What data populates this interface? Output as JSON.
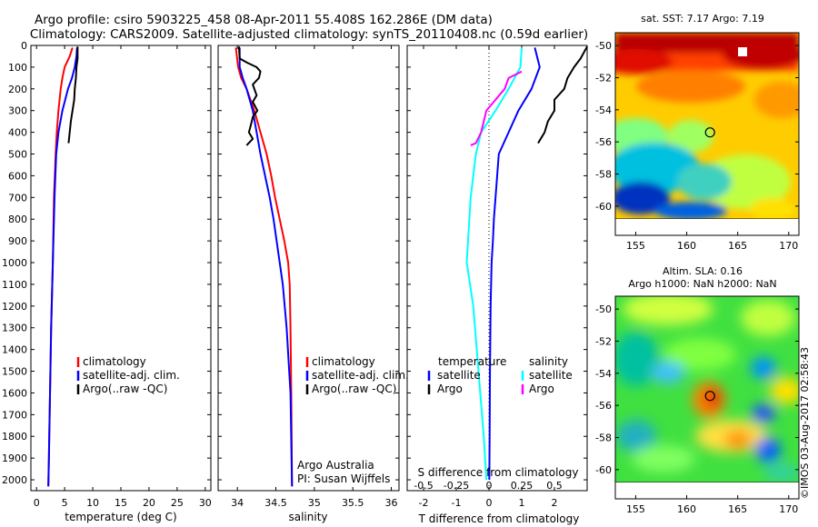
{
  "header": {
    "title_line1": "Argo profile: csiro 5903225_458 08-Apr-2011 55.408S 162.286E (DM data)",
    "title_line2": "Climatology: CARS2009. Satellite-adjusted climatology: synTS_20110408.nc (0.59d earlier)"
  },
  "colors": {
    "climatology": "#ff0000",
    "satellite": "#0000ff",
    "argo": "#000000",
    "salinity_satellite": "#00ffff",
    "salinity_argo": "#ff00ff"
  },
  "depth_axis": {
    "ylim": [
      0,
      2050
    ],
    "ticks": [
      "0",
      "100",
      "200",
      "300",
      "400",
      "500",
      "600",
      "700",
      "800",
      "900",
      "1000",
      "1100",
      "1200",
      "1300",
      "1400",
      "1500",
      "1600",
      "1700",
      "1800",
      "1900",
      "2000"
    ]
  },
  "chart_data": [
    {
      "type": "line",
      "name": "temperature-profile",
      "xlabel": "temperature (deg C)",
      "xlim": [
        -1,
        31
      ],
      "xticks": [
        "0",
        "5",
        "10",
        "15",
        "20",
        "25",
        "30"
      ],
      "legend": [
        "climatology",
        "satellite-adj. clim.",
        "Argo(..raw -QC)"
      ],
      "legend_position": "bottom-center",
      "series": [
        {
          "name": "climatology",
          "depth": [
            10,
            50,
            100,
            150,
            200,
            300,
            400,
            500,
            700,
            1000,
            1300,
            1600,
            1900,
            2030
          ],
          "values": [
            6.4,
            5.9,
            5.0,
            4.6,
            4.3,
            3.9,
            3.6,
            3.4,
            3.1,
            2.9,
            2.6,
            2.4,
            2.2,
            2.1
          ]
        },
        {
          "name": "satellite-adj. clim.",
          "depth": [
            10,
            50,
            100,
            150,
            200,
            300,
            400,
            500,
            700,
            1000,
            1300,
            1600,
            1900,
            2030
          ],
          "values": [
            7.2,
            7.1,
            6.8,
            6.3,
            5.6,
            4.6,
            3.9,
            3.5,
            3.2,
            2.9,
            2.6,
            2.4,
            2.2,
            2.1
          ]
        },
        {
          "name": "Argo(..raw -QC)",
          "depth": [
            5,
            60,
            100,
            150,
            200,
            250,
            300,
            350,
            400,
            450
          ],
          "values": [
            7.3,
            7.3,
            7.1,
            7.0,
            6.8,
            6.7,
            6.4,
            6.1,
            5.9,
            5.7
          ]
        }
      ]
    },
    {
      "type": "line",
      "name": "salinity-profile",
      "xlabel": "salinity",
      "xlim": [
        33.75,
        36.1
      ],
      "xticks": [
        "34",
        "34.5",
        "35",
        "35.5",
        "36"
      ],
      "legend": [
        "climatology",
        "satellite-adj. clim.",
        "Argo(..raw -QC)"
      ],
      "legend_position": "bottom-center",
      "annotation": [
        "Argo Australia",
        "PI: Susan Wijffels"
      ],
      "series": [
        {
          "name": "climatology",
          "depth": [
            10,
            100,
            150,
            200,
            300,
            400,
            500,
            600,
            700,
            800,
            900,
            1000,
            1100,
            1300,
            1600,
            2030
          ],
          "values": [
            33.98,
            34.01,
            34.05,
            34.12,
            34.22,
            34.3,
            34.38,
            34.44,
            34.49,
            34.55,
            34.61,
            34.66,
            34.68,
            34.69,
            34.7,
            34.71
          ]
        },
        {
          "name": "satellite-adj. clim.",
          "depth": [
            10,
            100,
            150,
            200,
            300,
            400,
            500,
            600,
            700,
            800,
            900,
            1000,
            1100,
            1300,
            1600,
            2030
          ],
          "values": [
            34.03,
            34.03,
            34.07,
            34.12,
            34.2,
            34.25,
            34.3,
            34.36,
            34.42,
            34.47,
            34.51,
            34.55,
            34.59,
            34.64,
            34.69,
            34.71
          ]
        },
        {
          "name": "Argo(..raw -QC)",
          "depth": [
            5,
            60,
            80,
            100,
            120,
            150,
            180,
            200,
            230,
            260,
            300,
            330,
            360,
            400,
            430,
            460
          ],
          "values": [
            34.02,
            34.03,
            34.13,
            34.25,
            34.3,
            34.28,
            34.2,
            34.22,
            34.25,
            34.2,
            34.26,
            34.2,
            34.18,
            34.15,
            34.2,
            34.12
          ]
        }
      ]
    },
    {
      "type": "line",
      "name": "difference-profile",
      "xlabel": "T difference from climatology",
      "xlabel_top": "S difference from climatology",
      "xlim": [
        -2.5,
        3.0
      ],
      "xticks_T": [
        "-2",
        "-1",
        "0",
        "1",
        "2"
      ],
      "xticks_S": [
        "-0.5",
        "-0.25",
        "0",
        "0.25",
        "0.5"
      ],
      "legend_temperature_title": "temperature",
      "legend_salinity_title": "salinity",
      "legend_temperature": [
        "satellite",
        "Argo"
      ],
      "legend_salinity": [
        "satellite",
        "Argo"
      ],
      "legend_position": "bottom",
      "series": [
        {
          "name": "temperature satellite",
          "depth": [
            10,
            100,
            200,
            300,
            400,
            500,
            600,
            700,
            800,
            900,
            1000,
            1200,
            1500,
            1800,
            2000
          ],
          "values": [
            1.4,
            1.55,
            1.3,
            0.9,
            0.6,
            0.3,
            0.25,
            0.2,
            0.15,
            0.12,
            0.08,
            0.05,
            0.03,
            0.02,
            0.01
          ]
        },
        {
          "name": "temperature Argo",
          "depth": [
            5,
            60,
            100,
            150,
            200,
            250,
            300,
            350,
            400,
            450
          ],
          "values": [
            3.0,
            2.8,
            2.6,
            2.4,
            2.3,
            2.0,
            2.0,
            1.8,
            1.7,
            1.5
          ]
        },
        {
          "name": "salinity satellite",
          "depth": [
            10,
            100,
            200,
            300,
            400,
            500,
            700,
            1000,
            1200,
            1500,
            1800,
            2000
          ],
          "values": [
            0.25,
            0.24,
            0.15,
            0.05,
            -0.06,
            -0.1,
            -0.14,
            -0.17,
            -0.12,
            -0.08,
            -0.04,
            -0.02
          ]
        },
        {
          "name": "salinity Argo",
          "depth": [
            120,
            150,
            200,
            250,
            300,
            350,
            400,
            450,
            460
          ],
          "values": [
            0.25,
            0.15,
            0.12,
            0.05,
            -0.02,
            -0.04,
            -0.06,
            -0.1,
            -0.14
          ]
        }
      ]
    },
    {
      "type": "heatmap",
      "name": "sst-map",
      "title": "sat. SST: 7.17  Argo: 7.19",
      "xlim": [
        153,
        171
      ],
      "ylim": [
        -60.8,
        -49.2
      ],
      "xticks": [
        "155",
        "160",
        "165",
        "170"
      ],
      "yticks": [
        "-50",
        "-52",
        "-54",
        "-56",
        "-58",
        "-60"
      ],
      "float_lon": 162.286,
      "float_lat": -55.408
    },
    {
      "type": "heatmap",
      "name": "sla-map",
      "title": "Altim. SLA: 0.16",
      "subtitle": "Argo h1000: NaN h2000: NaN",
      "xlim": [
        153,
        171
      ],
      "ylim": [
        -60.8,
        -49.2
      ],
      "xticks": [
        "155",
        "160",
        "165",
        "170"
      ],
      "yticks": [
        "-50",
        "-52",
        "-54",
        "-56",
        "-58",
        "-60"
      ],
      "float_lon": 162.286,
      "float_lat": -55.408
    }
  ],
  "footer": {
    "credit": "©IMOS 03-Aug-2017 02:58:43"
  }
}
